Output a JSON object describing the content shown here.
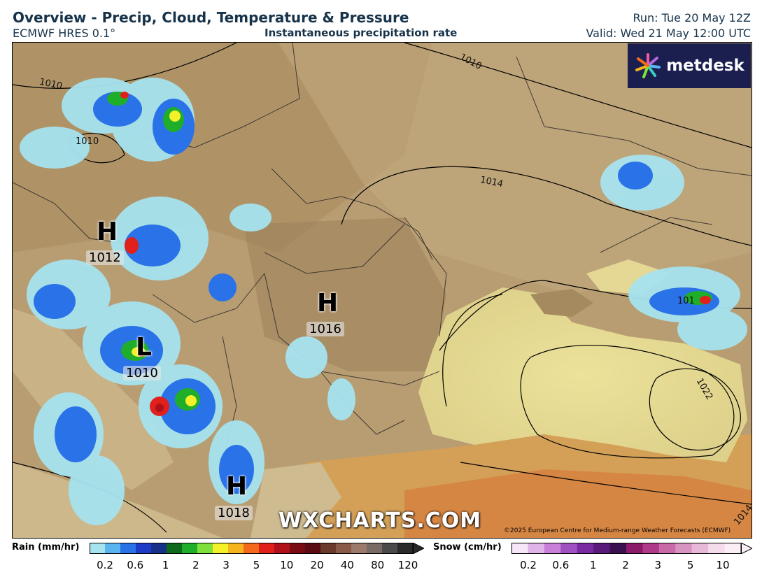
{
  "header": {
    "title": "Overview - Precip, Cloud, Temperature & Pressure",
    "subtitle": "ECMWF HRES 0.1°",
    "layer": "Instantaneous precipitation rate",
    "run": "Run: Tue 20 May 12Z",
    "valid": "Valid: Wed 21 May 12:00 UTC"
  },
  "brand": {
    "logo_text": "metdesk",
    "watermark": "WXCHARTS.COM",
    "copyright": "©2025 European Centre for Medium-range Weather Forecasts (ECMWF)"
  },
  "pressure_centers": [
    {
      "symbol": "H",
      "value": "1012"
    },
    {
      "symbol": "H",
      "value": "1016"
    },
    {
      "symbol": "L",
      "value": "1010"
    },
    {
      "symbol": "H",
      "value": "1018"
    }
  ],
  "isobar_labels": [
    "1010",
    "1010",
    "1010",
    "1014",
    "1022",
    "1014",
    "101"
  ],
  "legend": {
    "rain": {
      "label": "Rain (mm/hr)",
      "ticks": [
        "0.2",
        "0.6",
        "1",
        "2",
        "3",
        "5",
        "10",
        "20",
        "40",
        "80",
        "120"
      ],
      "colors": [
        "#a6e3ef",
        "#5ab4f0",
        "#2a72e8",
        "#1c3cc8",
        "#173088",
        "#0e6a1a",
        "#1fae2a",
        "#7ee03a",
        "#f4f02a",
        "#f5b41e",
        "#f26a1a",
        "#e0201a",
        "#b0101a",
        "#7a0a12",
        "#5a0a10",
        "#6a3a2a",
        "#8a5a48",
        "#9a7a6a",
        "#7a6a66",
        "#4a4a4a",
        "#2a2a2a"
      ]
    },
    "snow": {
      "label": "Snow (cm/hr)",
      "ticks": [
        "0.2",
        "0.6",
        "1",
        "2",
        "3",
        "5",
        "10"
      ],
      "colors": [
        "#f6e6f6",
        "#e0b4e8",
        "#c880d8",
        "#a050c0",
        "#7a2aa0",
        "#5a1a7a",
        "#3a1050",
        "#8a1a6a",
        "#b03a8a",
        "#c86aa8",
        "#d894c0",
        "#e8b8d8",
        "#f4dcec",
        "#fbeef6"
      ]
    }
  }
}
